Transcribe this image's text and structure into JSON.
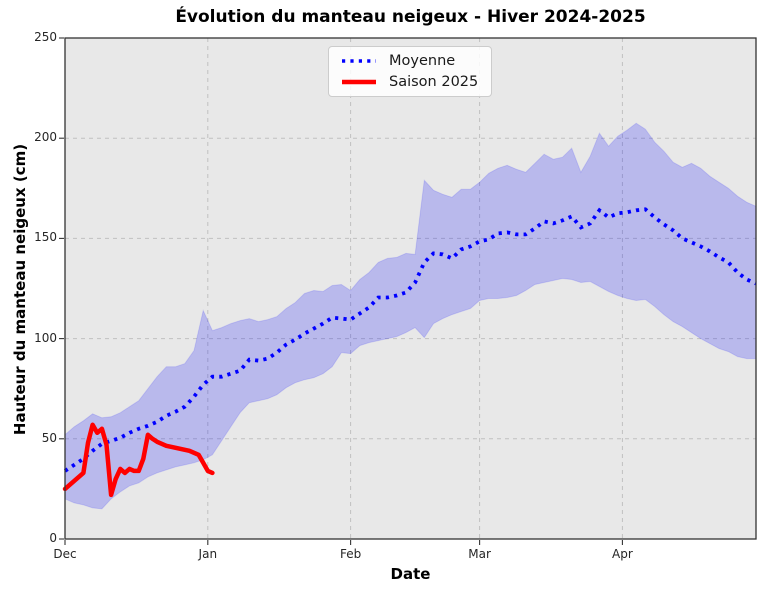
{
  "figure": {
    "title": "Évolution du manteau neigeux - Hiver 2024-2025",
    "xlabel": "Date",
    "ylabel": "Hauteur du manteau neigeux (cm)"
  },
  "legend": {
    "items": [
      {
        "label": "Moyenne",
        "style": "dotted",
        "color": "#0000ff"
      },
      {
        "label": "Saison 2025",
        "style": "solid",
        "color": "#ff0000"
      }
    ]
  },
  "colors": {
    "figure_bg": "#ffffff",
    "plot_bg": "#e8e8e8",
    "grid": "#c0c0c0",
    "spine": "#333333",
    "band_fill": "rgba(0,0,255,0.20)",
    "band_edge": "rgba(0,0,255,0.12)",
    "mean_line": "#0000ff",
    "season_line": "#ff0000",
    "tick_text": "#262626"
  },
  "chart_data": {
    "type": "line",
    "title": "Évolution du manteau neigeux - Hiver 2024-2025",
    "xlabel": "Date",
    "ylabel": "Hauteur du manteau neigeux (cm)",
    "x_unit": "days since Dec 1",
    "xlim": [
      0,
      150
    ],
    "ylim": [
      0,
      250
    ],
    "yticks": [
      0,
      50,
      100,
      150,
      200,
      250
    ],
    "xticks": [
      {
        "label": "Dec",
        "day": 0
      },
      {
        "label": "Jan",
        "day": 31
      },
      {
        "label": "Feb",
        "day": 62
      },
      {
        "label": "Mar",
        "day": 90
      },
      {
        "label": "Apr",
        "day": 121
      }
    ],
    "grid": true,
    "legend_position": "upper center-left",
    "band": {
      "days": [
        0,
        2,
        4,
        6,
        8,
        10,
        12,
        14,
        16,
        18,
        20,
        22,
        24,
        26,
        28,
        30,
        32,
        34,
        36,
        38,
        40,
        42,
        44,
        46,
        48,
        50,
        52,
        54,
        56,
        58,
        60,
        62,
        64,
        66,
        68,
        70,
        72,
        74,
        76,
        78,
        80,
        82,
        84,
        86,
        88,
        90,
        92,
        94,
        96,
        98,
        100,
        102,
        104,
        106,
        108,
        110,
        112,
        114,
        116,
        118,
        120,
        122,
        124,
        126,
        128,
        130,
        132,
        134,
        136,
        138,
        140,
        142,
        144,
        146,
        148,
        150
      ],
      "min": [
        20,
        18,
        17,
        15.5,
        15,
        20,
        23.5,
        26.5,
        28,
        31,
        33,
        34.5,
        36,
        37,
        38,
        39.5,
        42,
        49,
        56,
        63,
        68,
        69,
        70,
        72,
        75.5,
        78,
        79.5,
        80.5,
        82.5,
        86,
        93,
        92.5,
        96.5,
        98,
        99,
        100,
        101,
        103,
        105.5,
        100.5,
        107.5,
        110,
        112,
        113.5,
        115,
        119,
        120,
        120,
        120.5,
        121.5,
        124,
        127,
        128,
        129,
        130,
        129.5,
        128,
        128.5,
        126,
        123.5,
        121.5,
        120,
        119,
        119.5,
        116,
        112,
        108.5,
        106,
        103,
        100,
        97.5,
        95,
        93.5,
        91,
        90,
        90
      ],
      "max": [
        52,
        56,
        59,
        62.5,
        60.5,
        61,
        63,
        66,
        69,
        75,
        81,
        86,
        86,
        87.5,
        94,
        114,
        104,
        105.5,
        107.5,
        109,
        110,
        108.5,
        109.5,
        111,
        115,
        118,
        122.5,
        124,
        123.5,
        126.5,
        127,
        124,
        129.5,
        133,
        138,
        140,
        140.5,
        142.5,
        142,
        179,
        174,
        172,
        170.5,
        174.5,
        174.5,
        178,
        182.5,
        185,
        186.5,
        184.5,
        183,
        187.5,
        192,
        189.5,
        190.5,
        195,
        183,
        191,
        202.5,
        196,
        201,
        204,
        207.5,
        204.5,
        198,
        193.5,
        188,
        185.5,
        187.5,
        185,
        181,
        178,
        175,
        171,
        168,
        166
      ]
    },
    "series": [
      {
        "name": "Moyenne",
        "color": "#0000ff",
        "style": "dotted",
        "days": [
          0,
          2,
          4,
          6,
          8,
          10,
          12,
          14,
          16,
          18,
          20,
          22,
          24,
          26,
          28,
          30,
          32,
          34,
          36,
          38,
          40,
          42,
          44,
          46,
          48,
          50,
          52,
          54,
          56,
          58,
          60,
          62,
          64,
          66,
          68,
          70,
          72,
          74,
          76,
          78,
          80,
          82,
          84,
          86,
          88,
          90,
          92,
          94,
          96,
          98,
          100,
          102,
          104,
          106,
          108,
          110,
          112,
          114,
          116,
          118,
          120,
          122,
          124,
          126,
          128,
          130,
          132,
          134,
          136,
          138,
          140,
          142,
          144,
          146,
          148,
          150
        ],
        "values": [
          34,
          37,
          40,
          44,
          47.5,
          49,
          50.5,
          53,
          55,
          56.5,
          58.5,
          61.5,
          63.5,
          66,
          71,
          77,
          81,
          81,
          82.5,
          84,
          89.5,
          89,
          90,
          93,
          97,
          99.5,
          102.5,
          105,
          107.5,
          110.5,
          110,
          109.5,
          112.5,
          115.5,
          120.5,
          120.5,
          121.5,
          123,
          128,
          138,
          142.5,
          142,
          140,
          144.5,
          146,
          148.5,
          149.5,
          152.5,
          153,
          152,
          152,
          155,
          158.5,
          157.5,
          159,
          161,
          155.5,
          157.5,
          164,
          160.5,
          162.5,
          163,
          164,
          164.5,
          160.5,
          157,
          154,
          150,
          148,
          146,
          143.5,
          140.5,
          138,
          133,
          129.5,
          127.5
        ]
      },
      {
        "name": "Saison 2025",
        "color": "#ff0000",
        "style": "solid",
        "days": [
          0,
          1,
          2,
          3,
          4,
          5,
          6,
          7,
          8,
          9,
          10,
          11,
          12,
          13,
          14,
          15,
          16,
          17,
          18,
          19,
          20,
          21,
          22,
          23,
          24,
          25,
          26,
          27,
          28,
          29,
          30,
          31,
          32
        ],
        "values": [
          25,
          27,
          29,
          31,
          33,
          48,
          57,
          53,
          55,
          47,
          22,
          30,
          35,
          33,
          35,
          34,
          34,
          40,
          52,
          50,
          48.5,
          47.5,
          46.5,
          46,
          45.5,
          45,
          44.5,
          44,
          43,
          42,
          38,
          34,
          33
        ]
      }
    ]
  }
}
